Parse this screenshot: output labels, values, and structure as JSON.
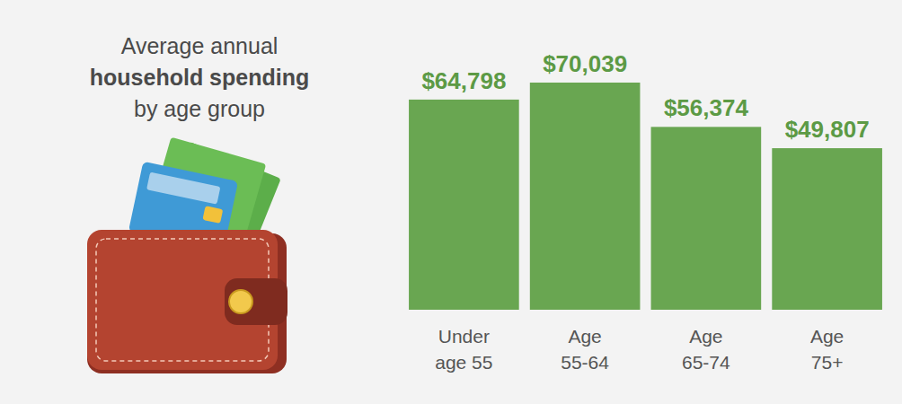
{
  "chart_data": {
    "type": "bar",
    "title": "Average annual household spending by age group",
    "categories": [
      "Under age 55",
      "Age 55-64",
      "Age 65-74",
      "Age 75+"
    ],
    "values": [
      64798,
      70039,
      56374,
      49807
    ],
    "value_labels": [
      "$64,798",
      "$70,039",
      "$56,374",
      "$49,807"
    ],
    "color": "#69a651",
    "ylim": [
      0,
      80000
    ],
    "data_labels": true,
    "tick_labels": "x",
    "grid": false
  }
}
